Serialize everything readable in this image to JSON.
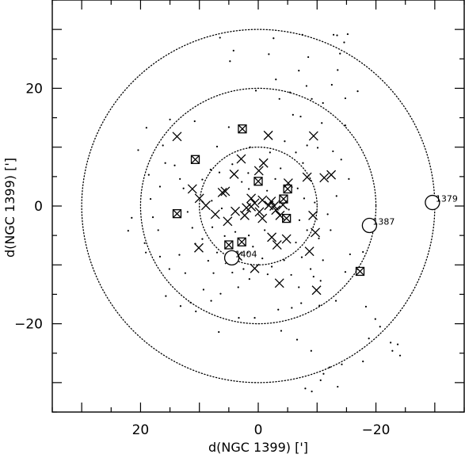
{
  "chart_data": {
    "type": "scatter",
    "title": "",
    "xlabel": "d(NGC 1399) [']",
    "ylabel": "d(NGC 1399) [']",
    "xlim": [
      35,
      -35
    ],
    "ylim": [
      -35,
      35
    ],
    "x_ticks": [
      20,
      0,
      -20
    ],
    "x_tick_labels": [
      "20",
      "0",
      "−20"
    ],
    "y_ticks": [
      20,
      0,
      -20
    ],
    "y_tick_labels": [
      "20",
      "0",
      "−20"
    ],
    "grid": false,
    "circles": [
      {
        "center": [
          0,
          0
        ],
        "radius": 10,
        "style": "dotted"
      },
      {
        "center": [
          0,
          0
        ],
        "radius": 20,
        "style": "dotted"
      },
      {
        "center": [
          0,
          0
        ],
        "radius": 30,
        "style": "dotted"
      }
    ],
    "annotated_galaxies": [
      {
        "label": "1379",
        "x": -29.6,
        "y": 0.6
      },
      {
        "label": "1387",
        "x": -18.9,
        "y": -3.3
      },
      {
        "label": "1404",
        "x": 4.5,
        "y": -8.8
      }
    ],
    "boxed_cross_points": [
      {
        "x": 2.7,
        "y": 13.1
      },
      {
        "x": 10.7,
        "y": 7.9
      },
      {
        "x": 13.8,
        "y": -1.3
      },
      {
        "x": 0.0,
        "y": 4.2
      },
      {
        "x": -5.0,
        "y": 2.9
      },
      {
        "x": -4.3,
        "y": 1.2
      },
      {
        "x": -4.8,
        "y": -2.1
      },
      {
        "x": 5.0,
        "y": -6.6
      },
      {
        "x": 2.8,
        "y": -6.1
      },
      {
        "x": -17.3,
        "y": -11.1
      }
    ],
    "cross_points": [
      {
        "x": 13.8,
        "y": 11.8
      },
      {
        "x": 10.0,
        "y": 1.3
      },
      {
        "x": 11.2,
        "y": 2.9
      },
      {
        "x": 6.1,
        "y": 2.3
      },
      {
        "x": 5.6,
        "y": 2.5
      },
      {
        "x": 4.1,
        "y": 5.4
      },
      {
        "x": 2.9,
        "y": 8.0
      },
      {
        "x": 3.9,
        "y": -0.9
      },
      {
        "x": 8.9,
        "y": 0.1
      },
      {
        "x": 5.2,
        "y": -2.6
      },
      {
        "x": 2.3,
        "y": -1.6
      },
      {
        "x": 2.0,
        "y": -0.3
      },
      {
        "x": 1.2,
        "y": -0.1
      },
      {
        "x": 0.6,
        "y": 0.5
      },
      {
        "x": -0.7,
        "y": 1.0
      },
      {
        "x": -0.2,
        "y": -1.0
      },
      {
        "x": -0.7,
        "y": -2.1
      },
      {
        "x": -1.8,
        "y": 0.1
      },
      {
        "x": -2.2,
        "y": 0.8
      },
      {
        "x": -2.7,
        "y": 0.0
      },
      {
        "x": -3.0,
        "y": -0.7
      },
      {
        "x": -3.7,
        "y": -1.6
      },
      {
        "x": -4.2,
        "y": 0.2
      },
      {
        "x": -0.1,
        "y": 6.0
      },
      {
        "x": -0.9,
        "y": 7.3
      },
      {
        "x": 1.2,
        "y": 1.3
      },
      {
        "x": -5.1,
        "y": 3.9
      },
      {
        "x": -3.2,
        "y": -6.6
      },
      {
        "x": -4.8,
        "y": -5.6
      },
      {
        "x": -2.3,
        "y": -5.3
      },
      {
        "x": -1.7,
        "y": 12.0
      },
      {
        "x": -9.4,
        "y": 11.9
      },
      {
        "x": -8.3,
        "y": 4.9
      },
      {
        "x": -11.2,
        "y": 4.8
      },
      {
        "x": -12.4,
        "y": 5.3
      },
      {
        "x": -9.3,
        "y": -1.6
      },
      {
        "x": -9.7,
        "y": -4.5
      },
      {
        "x": -8.7,
        "y": -7.7
      },
      {
        "x": -9.9,
        "y": -14.3
      },
      {
        "x": -3.6,
        "y": -13.1
      },
      {
        "x": 0.6,
        "y": -10.6
      },
      {
        "x": 10.1,
        "y": -7.1
      },
      {
        "x": 3.5,
        "y": -8.5
      },
      {
        "x": 4.9,
        "y": -9.1
      },
      {
        "x": 7.3,
        "y": -1.4
      }
    ],
    "dot_points": [
      {
        "x": 6.5,
        "y": 28.6
      },
      {
        "x": -2.6,
        "y": 28.5
      },
      {
        "x": -7.5,
        "y": 29.1
      },
      {
        "x": -15.2,
        "y": 29.2
      },
      {
        "x": -13.4,
        "y": 29.0
      },
      {
        "x": -14.6,
        "y": 27.8
      },
      {
        "x": -12.8,
        "y": 29.1
      },
      {
        "x": 4.8,
        "y": 24.6
      },
      {
        "x": -1.8,
        "y": 25.8
      },
      {
        "x": -8.5,
        "y": 25.3
      },
      {
        "x": -13.9,
        "y": 25.9
      },
      {
        "x": -6.9,
        "y": 23.0
      },
      {
        "x": -3.0,
        "y": 21.5
      },
      {
        "x": 0.4,
        "y": 19.6
      },
      {
        "x": -3.6,
        "y": 18.2
      },
      {
        "x": -5.4,
        "y": 19.3
      },
      {
        "x": -8.2,
        "y": 20.4
      },
      {
        "x": -12.5,
        "y": 20.6
      },
      {
        "x": -14.8,
        "y": 18.3
      },
      {
        "x": -16.9,
        "y": 19.5
      },
      {
        "x": -11.0,
        "y": 17.5
      },
      {
        "x": -9.1,
        "y": 18.2
      },
      {
        "x": -5.9,
        "y": 15.5
      },
      {
        "x": -7.2,
        "y": 15.2
      },
      {
        "x": -10.8,
        "y": 14.1
      },
      {
        "x": -14.8,
        "y": 13.7
      },
      {
        "x": 19.0,
        "y": 13.3
      },
      {
        "x": 16.2,
        "y": 10.3
      },
      {
        "x": 15.8,
        "y": 7.3
      },
      {
        "x": 14.2,
        "y": 6.9
      },
      {
        "x": 13.3,
        "y": 4.6
      },
      {
        "x": 16.7,
        "y": 3.3
      },
      {
        "x": 18.3,
        "y": 1.2
      },
      {
        "x": 12.7,
        "y": 3.0
      },
      {
        "x": 17.0,
        "y": -4.1
      },
      {
        "x": 19.3,
        "y": -6.3
      },
      {
        "x": 19.1,
        "y": -7.9
      },
      {
        "x": 16.7,
        "y": -8.6
      },
      {
        "x": 15.1,
        "y": -10.7
      },
      {
        "x": 13.4,
        "y": -8.3
      },
      {
        "x": 12.4,
        "y": -11.4
      },
      {
        "x": 15.7,
        "y": -15.3
      },
      {
        "x": 13.2,
        "y": -17.0
      },
      {
        "x": 9.3,
        "y": -14.2
      },
      {
        "x": 6.4,
        "y": -14.9
      },
      {
        "x": 7.6,
        "y": -11.4
      },
      {
        "x": 3.4,
        "y": -13.8
      },
      {
        "x": 2.5,
        "y": -10.7
      },
      {
        "x": 1.5,
        "y": -12.4
      },
      {
        "x": -1.6,
        "y": -11.6
      },
      {
        "x": -5.6,
        "y": -11.7
      },
      {
        "x": -6.9,
        "y": -13.8
      },
      {
        "x": -9.4,
        "y": -12.0
      },
      {
        "x": -10.6,
        "y": -12.7
      },
      {
        "x": -7.4,
        "y": -8.7
      },
      {
        "x": -8.9,
        "y": -10.7
      },
      {
        "x": -11.0,
        "y": -9.2
      },
      {
        "x": -14.8,
        "y": -11.2
      },
      {
        "x": -15.6,
        "y": -8.2
      },
      {
        "x": -17.8,
        "y": -7.8
      },
      {
        "x": -18.3,
        "y": -17.1
      },
      {
        "x": -19.9,
        "y": -19.2
      },
      {
        "x": -20.7,
        "y": -20.5
      },
      {
        "x": -18.8,
        "y": -22.5
      },
      {
        "x": -22.5,
        "y": -23.2
      },
      {
        "x": -23.7,
        "y": -23.5
      },
      {
        "x": -22.8,
        "y": -24.6
      },
      {
        "x": -24.1,
        "y": -25.4
      },
      {
        "x": -17.8,
        "y": -26.4
      },
      {
        "x": -14.2,
        "y": -26.9
      },
      {
        "x": -12.1,
        "y": -27.4
      },
      {
        "x": -11.1,
        "y": -28.5
      },
      {
        "x": -10.6,
        "y": -29.6
      },
      {
        "x": -13.5,
        "y": -30.7
      },
      {
        "x": -9.1,
        "y": -31.5
      },
      {
        "x": -11.2,
        "y": -35.2
      },
      {
        "x": 0.6,
        "y": -19.0
      },
      {
        "x": -3.9,
        "y": -21.2
      },
      {
        "x": -5.7,
        "y": -17.3
      },
      {
        "x": -3.4,
        "y": -17.6
      },
      {
        "x": 6.7,
        "y": -21.4
      },
      {
        "x": 3.3,
        "y": -19.0
      },
      {
        "x": -7.3,
        "y": -16.5
      },
      {
        "x": -10.4,
        "y": -16.9
      },
      {
        "x": -13.2,
        "y": -16.1
      },
      {
        "x": 10.6,
        "y": -17.9
      },
      {
        "x": 11.5,
        "y": -16.4
      },
      {
        "x": 8.0,
        "y": -16.1
      },
      {
        "x": 22.1,
        "y": -4.2
      },
      {
        "x": 18.6,
        "y": 5.3
      },
      {
        "x": 15.0,
        "y": 14.7
      },
      {
        "x": 10.8,
        "y": 14.4
      },
      {
        "x": 7.0,
        "y": 10.1
      },
      {
        "x": 5.0,
        "y": 13.4
      },
      {
        "x": 1.4,
        "y": 10.0
      },
      {
        "x": -2.0,
        "y": 9.1
      },
      {
        "x": -4.5,
        "y": 11.0
      },
      {
        "x": -6.4,
        "y": 9.1
      },
      {
        "x": -7.6,
        "y": 7.3
      },
      {
        "x": -8.3,
        "y": 10.3
      },
      {
        "x": -10.1,
        "y": 9.9
      },
      {
        "x": -12.7,
        "y": 9.3
      },
      {
        "x": -14.1,
        "y": 7.9
      },
      {
        "x": -15.4,
        "y": 4.6
      },
      {
        "x": -13.3,
        "y": 1.7
      },
      {
        "x": -11.8,
        "y": -1.4
      },
      {
        "x": -12.3,
        "y": -4.1
      },
      {
        "x": -10.3,
        "y": -5.5
      },
      {
        "x": -8.3,
        "y": -4.1
      },
      {
        "x": -6.4,
        "y": -6.2
      },
      {
        "x": -7.0,
        "y": -2.4
      },
      {
        "x": -5.2,
        "y": -0.6
      },
      {
        "x": -1.1,
        "y": -4.1
      },
      {
        "x": 1.6,
        "y": -5.0
      },
      {
        "x": 3.9,
        "y": -4.4
      },
      {
        "x": 5.7,
        "y": -5.1
      },
      {
        "x": 7.8,
        "y": -3.6
      },
      {
        "x": 9.5,
        "y": -5.6
      },
      {
        "x": 11.2,
        "y": -3.7
      },
      {
        "x": 12.0,
        "y": -1.0
      },
      {
        "x": 10.7,
        "y": -6.4
      },
      {
        "x": 8.5,
        "y": -9.3
      },
      {
        "x": 7.0,
        "y": -7.9
      },
      {
        "x": 4.4,
        "y": -11.3
      },
      {
        "x": 1.8,
        "y": -7.9
      },
      {
        "x": 0.9,
        "y": -6.9
      },
      {
        "x": -0.7,
        "y": -8.9
      },
      {
        "x": -2.3,
        "y": -10.3
      },
      {
        "x": -4.4,
        "y": -9.2
      },
      {
        "x": 9.5,
        "y": 4.5
      },
      {
        "x": 8.1,
        "y": 6.2
      },
      {
        "x": 6.6,
        "y": 5.7
      },
      {
        "x": 4.4,
        "y": 7.1
      },
      {
        "x": 2.8,
        "y": 4.1
      },
      {
        "x": 1.7,
        "y": 5.6
      },
      {
        "x": -2.9,
        "y": 4.6
      },
      {
        "x": -3.8,
        "y": 6.4
      },
      {
        "x": -6.7,
        "y": 3.0
      },
      {
        "x": -7.8,
        "y": 1.3
      },
      {
        "x": -9.6,
        "y": 0.6
      },
      {
        "x": 7.9,
        "y": 0.9
      },
      {
        "x": 6.2,
        "y": -0.4
      },
      {
        "x": -1.5,
        "y": 2.6
      },
      {
        "x": 1.6,
        "y": 2.9
      },
      {
        "x": 20.4,
        "y": 9.5
      },
      {
        "x": 21.5,
        "y": -2.0
      },
      {
        "x": 17.9,
        "y": -1.9
      },
      {
        "x": -6.6,
        "y": -22.7
      },
      {
        "x": -9.0,
        "y": -24.6
      },
      {
        "x": -8.0,
        "y": -31.0
      },
      {
        "x": 4.2,
        "y": 26.4
      },
      {
        "x": -13.5,
        "y": 23.1
      }
    ]
  }
}
